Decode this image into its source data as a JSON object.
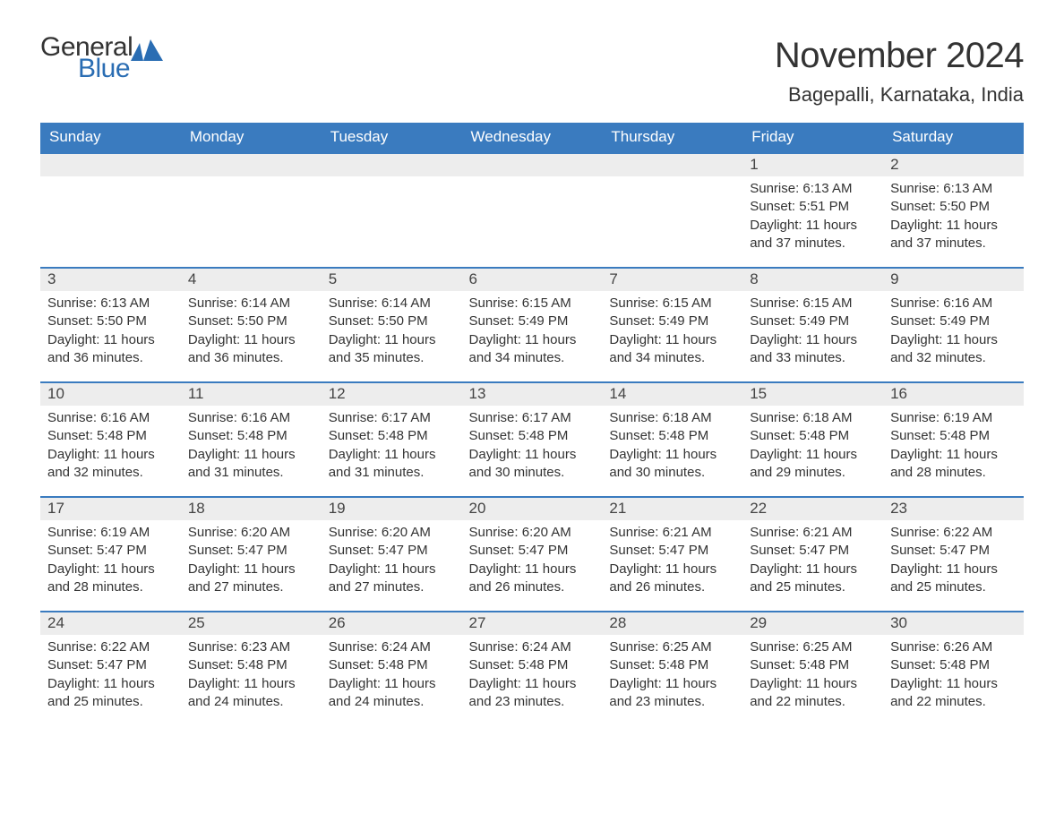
{
  "logo": {
    "word1": "General",
    "word2": "Blue"
  },
  "title": "November 2024",
  "location": "Bagepalli, Karnataka, India",
  "colors": {
    "header_bg": "#3a7bbf",
    "header_text": "#ffffff",
    "daynum_bg": "#ededed",
    "daynum_border": "#3a7bbf",
    "body_text": "#333333",
    "logo_blue": "#2a6db3",
    "page_bg": "#ffffff"
  },
  "day_headers": [
    "Sunday",
    "Monday",
    "Tuesday",
    "Wednesday",
    "Thursday",
    "Friday",
    "Saturday"
  ],
  "weeks": [
    [
      {
        "blank": true
      },
      {
        "blank": true
      },
      {
        "blank": true
      },
      {
        "blank": true
      },
      {
        "blank": true
      },
      {
        "num": "1",
        "sunrise": "Sunrise: 6:13 AM",
        "sunset": "Sunset: 5:51 PM",
        "daylight1": "Daylight: 11 hours",
        "daylight2": "and 37 minutes."
      },
      {
        "num": "2",
        "sunrise": "Sunrise: 6:13 AM",
        "sunset": "Sunset: 5:50 PM",
        "daylight1": "Daylight: 11 hours",
        "daylight2": "and 37 minutes."
      }
    ],
    [
      {
        "num": "3",
        "sunrise": "Sunrise: 6:13 AM",
        "sunset": "Sunset: 5:50 PM",
        "daylight1": "Daylight: 11 hours",
        "daylight2": "and 36 minutes."
      },
      {
        "num": "4",
        "sunrise": "Sunrise: 6:14 AM",
        "sunset": "Sunset: 5:50 PM",
        "daylight1": "Daylight: 11 hours",
        "daylight2": "and 36 minutes."
      },
      {
        "num": "5",
        "sunrise": "Sunrise: 6:14 AM",
        "sunset": "Sunset: 5:50 PM",
        "daylight1": "Daylight: 11 hours",
        "daylight2": "and 35 minutes."
      },
      {
        "num": "6",
        "sunrise": "Sunrise: 6:15 AM",
        "sunset": "Sunset: 5:49 PM",
        "daylight1": "Daylight: 11 hours",
        "daylight2": "and 34 minutes."
      },
      {
        "num": "7",
        "sunrise": "Sunrise: 6:15 AM",
        "sunset": "Sunset: 5:49 PM",
        "daylight1": "Daylight: 11 hours",
        "daylight2": "and 34 minutes."
      },
      {
        "num": "8",
        "sunrise": "Sunrise: 6:15 AM",
        "sunset": "Sunset: 5:49 PM",
        "daylight1": "Daylight: 11 hours",
        "daylight2": "and 33 minutes."
      },
      {
        "num": "9",
        "sunrise": "Sunrise: 6:16 AM",
        "sunset": "Sunset: 5:49 PM",
        "daylight1": "Daylight: 11 hours",
        "daylight2": "and 32 minutes."
      }
    ],
    [
      {
        "num": "10",
        "sunrise": "Sunrise: 6:16 AM",
        "sunset": "Sunset: 5:48 PM",
        "daylight1": "Daylight: 11 hours",
        "daylight2": "and 32 minutes."
      },
      {
        "num": "11",
        "sunrise": "Sunrise: 6:16 AM",
        "sunset": "Sunset: 5:48 PM",
        "daylight1": "Daylight: 11 hours",
        "daylight2": "and 31 minutes."
      },
      {
        "num": "12",
        "sunrise": "Sunrise: 6:17 AM",
        "sunset": "Sunset: 5:48 PM",
        "daylight1": "Daylight: 11 hours",
        "daylight2": "and 31 minutes."
      },
      {
        "num": "13",
        "sunrise": "Sunrise: 6:17 AM",
        "sunset": "Sunset: 5:48 PM",
        "daylight1": "Daylight: 11 hours",
        "daylight2": "and 30 minutes."
      },
      {
        "num": "14",
        "sunrise": "Sunrise: 6:18 AM",
        "sunset": "Sunset: 5:48 PM",
        "daylight1": "Daylight: 11 hours",
        "daylight2": "and 30 minutes."
      },
      {
        "num": "15",
        "sunrise": "Sunrise: 6:18 AM",
        "sunset": "Sunset: 5:48 PM",
        "daylight1": "Daylight: 11 hours",
        "daylight2": "and 29 minutes."
      },
      {
        "num": "16",
        "sunrise": "Sunrise: 6:19 AM",
        "sunset": "Sunset: 5:48 PM",
        "daylight1": "Daylight: 11 hours",
        "daylight2": "and 28 minutes."
      }
    ],
    [
      {
        "num": "17",
        "sunrise": "Sunrise: 6:19 AM",
        "sunset": "Sunset: 5:47 PM",
        "daylight1": "Daylight: 11 hours",
        "daylight2": "and 28 minutes."
      },
      {
        "num": "18",
        "sunrise": "Sunrise: 6:20 AM",
        "sunset": "Sunset: 5:47 PM",
        "daylight1": "Daylight: 11 hours",
        "daylight2": "and 27 minutes."
      },
      {
        "num": "19",
        "sunrise": "Sunrise: 6:20 AM",
        "sunset": "Sunset: 5:47 PM",
        "daylight1": "Daylight: 11 hours",
        "daylight2": "and 27 minutes."
      },
      {
        "num": "20",
        "sunrise": "Sunrise: 6:20 AM",
        "sunset": "Sunset: 5:47 PM",
        "daylight1": "Daylight: 11 hours",
        "daylight2": "and 26 minutes."
      },
      {
        "num": "21",
        "sunrise": "Sunrise: 6:21 AM",
        "sunset": "Sunset: 5:47 PM",
        "daylight1": "Daylight: 11 hours",
        "daylight2": "and 26 minutes."
      },
      {
        "num": "22",
        "sunrise": "Sunrise: 6:21 AM",
        "sunset": "Sunset: 5:47 PM",
        "daylight1": "Daylight: 11 hours",
        "daylight2": "and 25 minutes."
      },
      {
        "num": "23",
        "sunrise": "Sunrise: 6:22 AM",
        "sunset": "Sunset: 5:47 PM",
        "daylight1": "Daylight: 11 hours",
        "daylight2": "and 25 minutes."
      }
    ],
    [
      {
        "num": "24",
        "sunrise": "Sunrise: 6:22 AM",
        "sunset": "Sunset: 5:47 PM",
        "daylight1": "Daylight: 11 hours",
        "daylight2": "and 25 minutes."
      },
      {
        "num": "25",
        "sunrise": "Sunrise: 6:23 AM",
        "sunset": "Sunset: 5:48 PM",
        "daylight1": "Daylight: 11 hours",
        "daylight2": "and 24 minutes."
      },
      {
        "num": "26",
        "sunrise": "Sunrise: 6:24 AM",
        "sunset": "Sunset: 5:48 PM",
        "daylight1": "Daylight: 11 hours",
        "daylight2": "and 24 minutes."
      },
      {
        "num": "27",
        "sunrise": "Sunrise: 6:24 AM",
        "sunset": "Sunset: 5:48 PM",
        "daylight1": "Daylight: 11 hours",
        "daylight2": "and 23 minutes."
      },
      {
        "num": "28",
        "sunrise": "Sunrise: 6:25 AM",
        "sunset": "Sunset: 5:48 PM",
        "daylight1": "Daylight: 11 hours",
        "daylight2": "and 23 minutes."
      },
      {
        "num": "29",
        "sunrise": "Sunrise: 6:25 AM",
        "sunset": "Sunset: 5:48 PM",
        "daylight1": "Daylight: 11 hours",
        "daylight2": "and 22 minutes."
      },
      {
        "num": "30",
        "sunrise": "Sunrise: 6:26 AM",
        "sunset": "Sunset: 5:48 PM",
        "daylight1": "Daylight: 11 hours",
        "daylight2": "and 22 minutes."
      }
    ]
  ]
}
